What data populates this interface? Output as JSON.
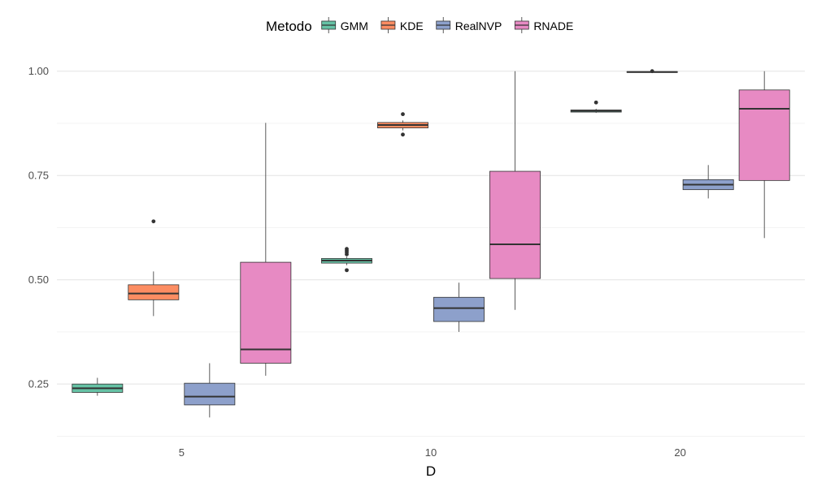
{
  "chart_data": {
    "type": "boxplot",
    "xlabel": "D",
    "ylabel": "",
    "ylim": [
      0.12,
      1.05
    ],
    "yticks": [
      0.25,
      0.5,
      0.75,
      1.0
    ],
    "ytick_labels": [
      "0.25",
      "0.50",
      "0.75",
      "1.00"
    ],
    "grid": true,
    "legend": {
      "title": "Metodo",
      "position": "top"
    },
    "categories": [
      "5",
      "10",
      "20"
    ],
    "series": [
      {
        "name": "GMM",
        "color": "#66C2A5",
        "boxes": [
          {
            "category": "5",
            "whisker_low": 0.222,
            "q1": 0.23,
            "median": 0.24,
            "q3": 0.25,
            "whisker_high": 0.265,
            "outliers": []
          },
          {
            "category": "10",
            "whisker_low": 0.535,
            "q1": 0.54,
            "median": 0.546,
            "q3": 0.551,
            "whisker_high": 0.555,
            "outliers": [
              0.523,
              0.561,
              0.566,
              0.57,
              0.574
            ]
          },
          {
            "category": "20",
            "whisker_low": 0.9,
            "q1": 0.902,
            "median": 0.905,
            "q3": 0.907,
            "whisker_high": 0.91,
            "outliers": [
              0.925
            ]
          }
        ]
      },
      {
        "name": "KDE",
        "color": "#FC8D62",
        "boxes": [
          {
            "category": "5",
            "whisker_low": 0.413,
            "q1": 0.452,
            "median": 0.467,
            "q3": 0.488,
            "whisker_high": 0.52,
            "outliers": [
              0.64
            ]
          },
          {
            "category": "10",
            "whisker_low": 0.858,
            "q1": 0.864,
            "median": 0.871,
            "q3": 0.877,
            "whisker_high": 0.882,
            "outliers": [
              0.848,
              0.897
            ]
          },
          {
            "category": "20",
            "whisker_low": 0.996,
            "q1": 0.997,
            "median": 0.998,
            "q3": 0.999,
            "whisker_high": 1.0,
            "outliers": [
              1.0
            ]
          }
        ]
      },
      {
        "name": "RealNVP",
        "color": "#8DA0CB",
        "boxes": [
          {
            "category": "5",
            "whisker_low": 0.17,
            "q1": 0.2,
            "median": 0.22,
            "q3": 0.252,
            "whisker_high": 0.3,
            "outliers": []
          },
          {
            "category": "10",
            "whisker_low": 0.375,
            "q1": 0.4,
            "median": 0.432,
            "q3": 0.458,
            "whisker_high": 0.493,
            "outliers": []
          },
          {
            "category": "20",
            "whisker_low": 0.695,
            "q1": 0.716,
            "median": 0.728,
            "q3": 0.74,
            "whisker_high": 0.775,
            "outliers": []
          }
        ]
      },
      {
        "name": "RNADE",
        "color": "#E78AC3",
        "boxes": [
          {
            "category": "5",
            "whisker_low": 0.27,
            "q1": 0.3,
            "median": 0.333,
            "q3": 0.542,
            "whisker_high": 0.876,
            "outliers": []
          },
          {
            "category": "10",
            "whisker_low": 0.428,
            "q1": 0.503,
            "median": 0.585,
            "q3": 0.76,
            "whisker_high": 1.0,
            "outliers": []
          },
          {
            "category": "20",
            "whisker_low": 0.6,
            "q1": 0.738,
            "median": 0.91,
            "q3": 0.955,
            "whisker_high": 1.0,
            "outliers": []
          }
        ]
      }
    ]
  }
}
